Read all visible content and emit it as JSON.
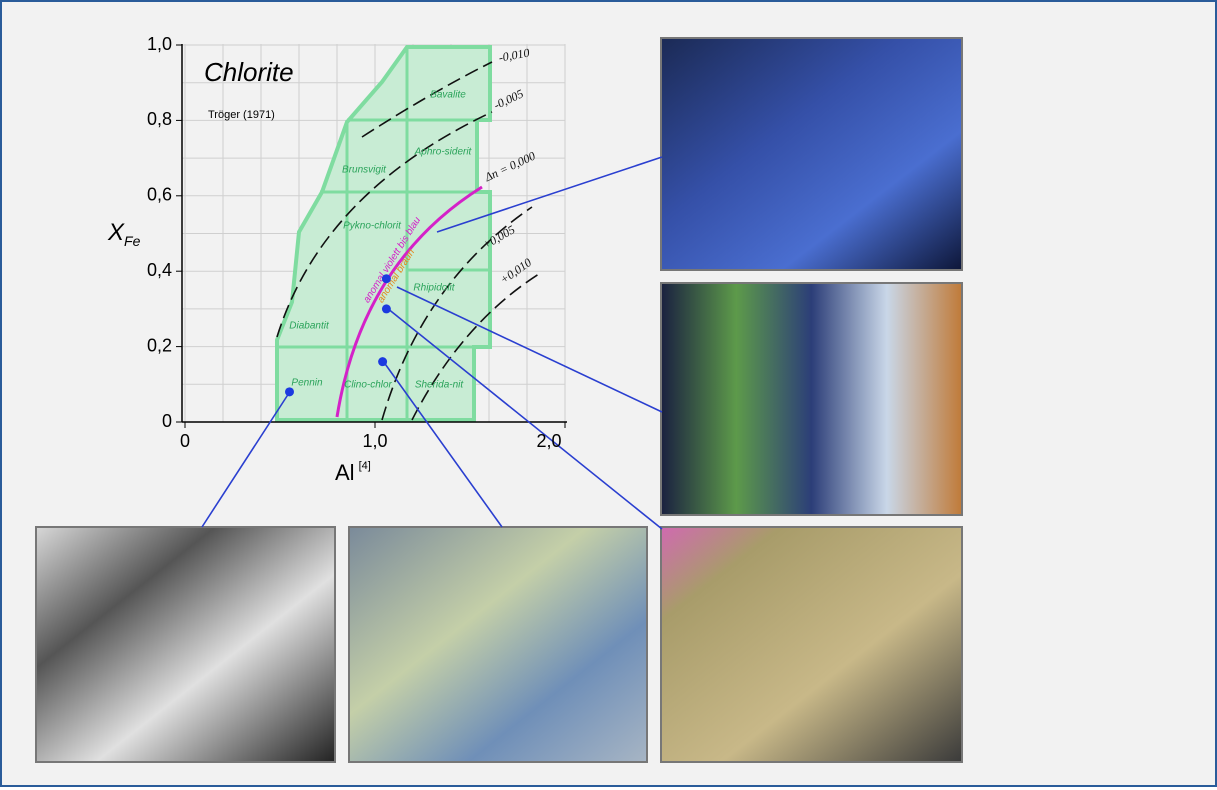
{
  "chart": {
    "title": "Chlorite",
    "source": "Tröger (1971)",
    "y_label": "X",
    "y_label_sub": "Fe",
    "x_label": "Al",
    "x_label_sup": "[4]",
    "xticks": [
      {
        "value": 0,
        "label": "0"
      },
      {
        "value": 1,
        "label": "1,0"
      },
      {
        "value": 2,
        "label": "2,0"
      }
    ],
    "yticks": [
      {
        "value": 0,
        "label": "0"
      },
      {
        "value": 0.2,
        "label": "0,2"
      },
      {
        "value": 0.4,
        "label": "0,4"
      },
      {
        "value": 0.6,
        "label": "0,6"
      },
      {
        "value": 0.8,
        "label": "0,8"
      },
      {
        "value": 1,
        "label": "1,0"
      }
    ],
    "fields": [
      "Bavalite",
      "Aphro-siderit",
      "Brunsvigit",
      "Pykno-chlorit",
      "Rhipidolit",
      "Diabantit",
      "Pennin",
      "Clino-chlor",
      "Sherida-nit"
    ],
    "curves": [
      "-0,010",
      "-0,005",
      "Δn = 0,000",
      "+0,005",
      "+0,010"
    ],
    "band_labels": [
      "anomal violett bis blau",
      "anomal braun"
    ],
    "points": {
      "x": [
        0.55,
        1.06,
        1.06,
        1.04
      ],
      "y": [
        0.08,
        0.38,
        0.3,
        0.16
      ]
    }
  }
}
